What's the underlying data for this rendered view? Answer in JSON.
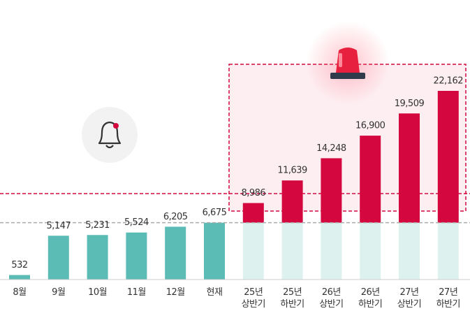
{
  "chart_data": {
    "type": "bar",
    "categories": [
      "8월",
      "9월",
      "10월",
      "11월",
      "12월",
      "현재",
      "25년 상반기",
      "25년 하반기",
      "26년 상반기",
      "26년 하반기",
      "27년 상반기",
      "27년 하반기"
    ],
    "values": [
      532,
      5147,
      5231,
      5524,
      6205,
      6675,
      8986,
      11639,
      14248,
      16900,
      19509,
      22162
    ],
    "value_labels": [
      "532",
      "5,147",
      "5,231",
      "5,524",
      "6,205",
      "6,675",
      "8,986",
      "11,639",
      "14,248",
      "16,900",
      "19,509",
      "22,162"
    ],
    "colors": [
      "#5bbcb6",
      "#5bbcb6",
      "#5bbcb6",
      "#5bbcb6",
      "#5bbcb6",
      "#5bbcb6",
      "#d4083f",
      "#d4083f",
      "#d4083f",
      "#d4083f",
      "#d4083f",
      "#d4083f"
    ],
    "base_color": "#ddf1ee"
  }
}
